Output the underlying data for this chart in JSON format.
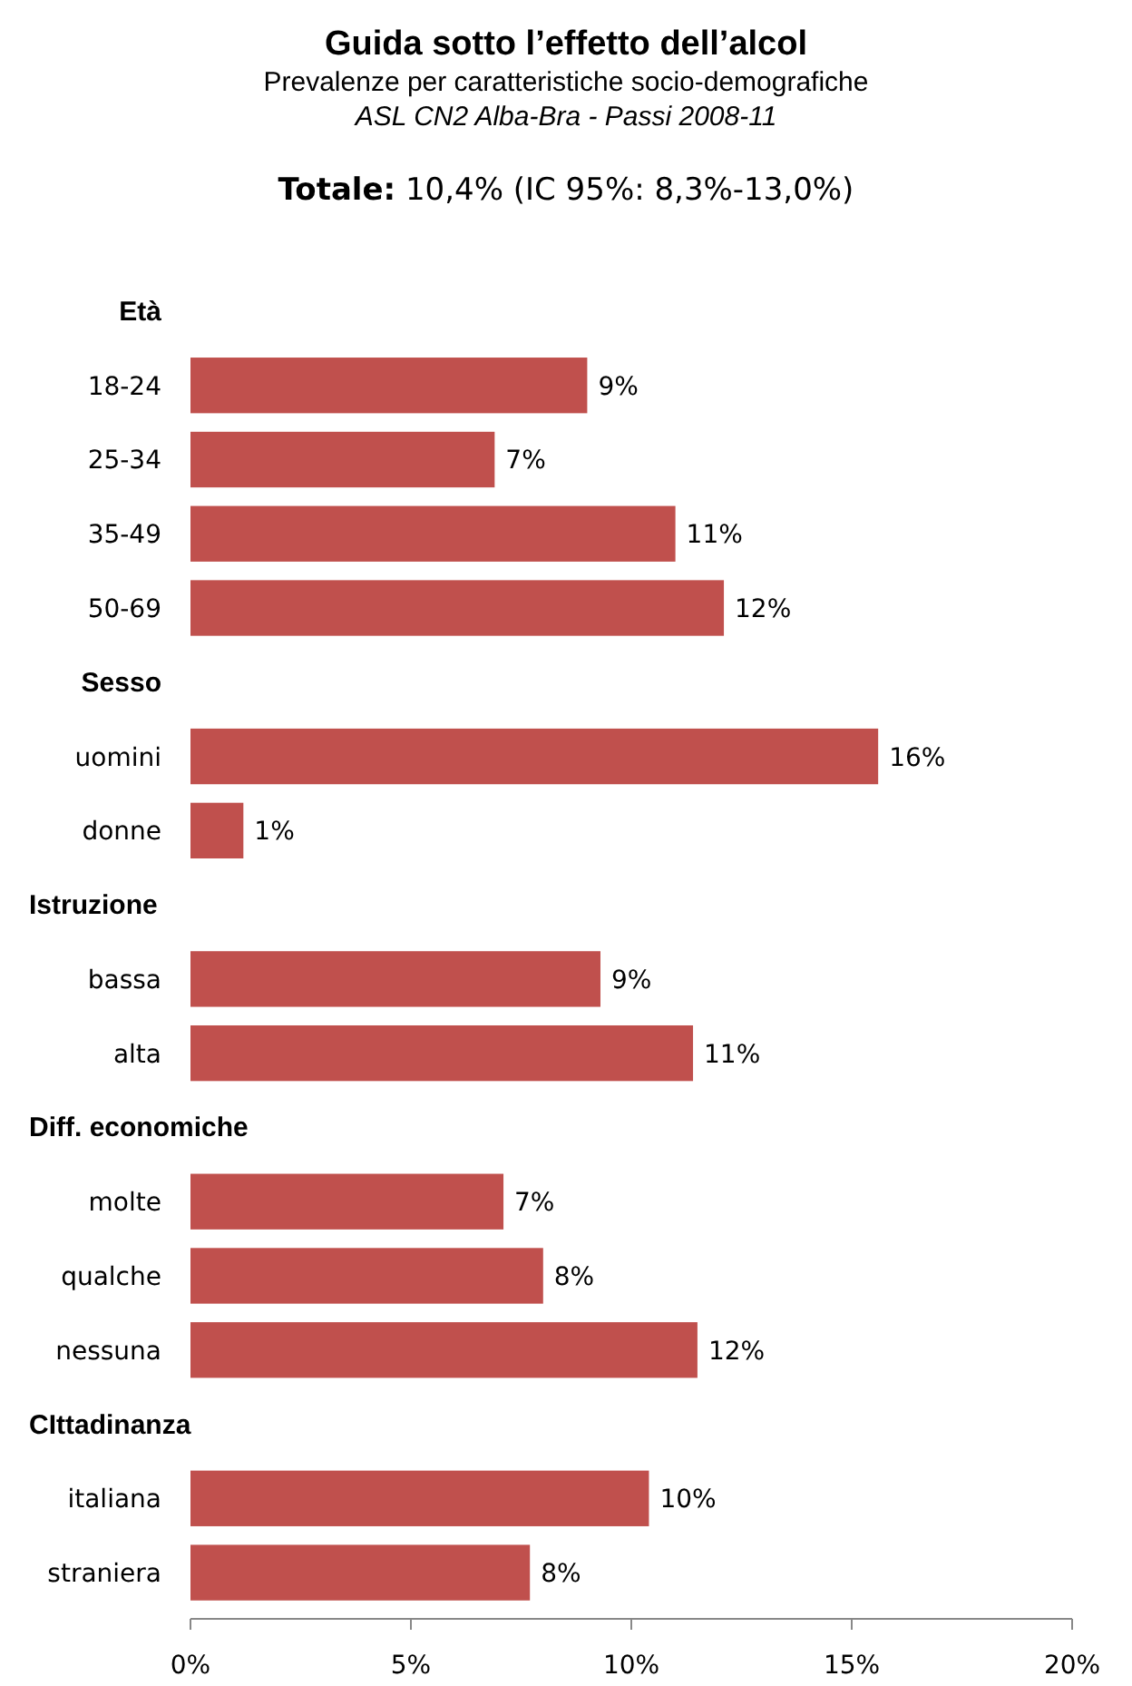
{
  "chart_data": {
    "type": "bar",
    "orientation": "horizontal",
    "title": "Guida sotto l’effetto dell’alcol",
    "subtitle": "Prevalenze per caratteristiche socio-demografiche",
    "annotations": [
      "ASL CN2 Alba-Bra  - Passi 2008-11",
      "Totale: 10,4% (IC 95%: 8,3%-13,0%)"
    ],
    "categories": [
      "Età",
      "18-24",
      "25-34",
      "35-49",
      "50-69",
      "Sesso",
      "uomini",
      "donne",
      "Istruzione",
      "bassa",
      "alta",
      "Diff. economiche",
      "molte",
      "qualche",
      "nessuna",
      "CIttadinanza",
      "italiana",
      "straniera"
    ],
    "values": [
      null,
      9.0,
      6.9,
      11.0,
      12.1,
      null,
      15.6,
      1.2,
      null,
      9.3,
      11.4,
      null,
      7.1,
      8.0,
      11.5,
      null,
      10.4,
      7.7
    ],
    "value_labels": [
      null,
      "9%",
      "7%",
      "11%",
      "12%",
      null,
      "16%",
      "1%",
      null,
      "9%",
      "11%",
      null,
      "7%",
      "8%",
      "12%",
      null,
      "10%",
      "8%"
    ],
    "color": "#c0504d",
    "xlim": [
      0,
      20
    ],
    "xticks": [
      {
        "value": 0,
        "label": "0%"
      },
      {
        "value": 5,
        "label": "5%"
      },
      {
        "value": 10,
        "label": "10%"
      },
      {
        "value": 15,
        "label": "15%"
      },
      {
        "value": 20,
        "label": "20%"
      }
    ],
    "grid": false
  }
}
